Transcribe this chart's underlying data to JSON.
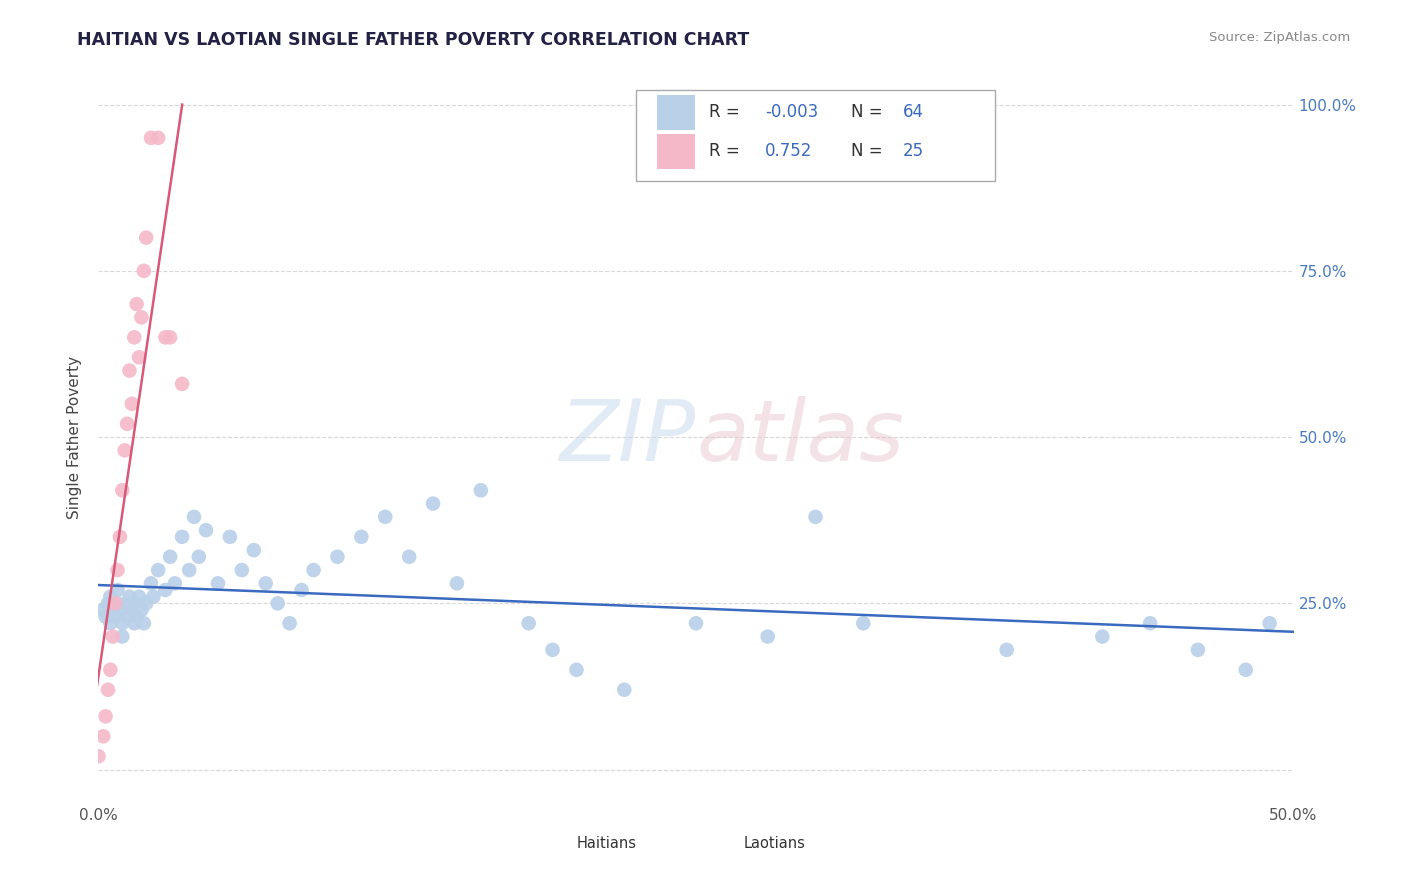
{
  "title": "HAITIAN VS LAOTIAN SINGLE FATHER POVERTY CORRELATION CHART",
  "source": "Source: ZipAtlas.com",
  "ylabel": "Single Father Poverty",
  "xlim": [
    0.0,
    0.5
  ],
  "ylim": [
    -0.05,
    1.05
  ],
  "xticks": [
    0.0,
    0.1,
    0.2,
    0.3,
    0.4,
    0.5
  ],
  "xtick_labels": [
    "0.0%",
    "",
    "",
    "",
    "",
    "50.0%"
  ],
  "yticks": [
    0.0,
    0.25,
    0.5,
    0.75,
    1.0
  ],
  "ytick_labels_right": [
    "",
    "25.0%",
    "50.0%",
    "75.0%",
    "100.0%"
  ],
  "background_color": "#ffffff",
  "grid_color": "#d8d8d8",
  "haitian_color": "#b8d0e8",
  "laotian_color": "#f5b8c8",
  "haitian_line_color": "#3a6abf",
  "laotian_line_color": "#d85878",
  "legend_haitian_r": "-0.003",
  "legend_haitian_n": "64",
  "legend_laotian_r": "0.752",
  "legend_laotian_n": "25",
  "haitian_x": [
    0.002,
    0.003,
    0.004,
    0.005,
    0.005,
    0.006,
    0.007,
    0.008,
    0.008,
    0.009,
    0.01,
    0.01,
    0.012,
    0.012,
    0.013,
    0.014,
    0.015,
    0.015,
    0.016,
    0.017,
    0.018,
    0.019,
    0.02,
    0.022,
    0.023,
    0.025,
    0.028,
    0.03,
    0.032,
    0.035,
    0.038,
    0.04,
    0.042,
    0.045,
    0.05,
    0.055,
    0.06,
    0.065,
    0.07,
    0.075,
    0.08,
    0.085,
    0.09,
    0.1,
    0.11,
    0.12,
    0.13,
    0.14,
    0.15,
    0.16,
    0.18,
    0.19,
    0.2,
    0.22,
    0.25,
    0.28,
    0.3,
    0.32,
    0.38,
    0.42,
    0.44,
    0.46,
    0.48,
    0.49
  ],
  "haitian_y": [
    0.24,
    0.23,
    0.25,
    0.22,
    0.26,
    0.24,
    0.23,
    0.25,
    0.27,
    0.24,
    0.2,
    0.22,
    0.23,
    0.25,
    0.26,
    0.24,
    0.22,
    0.25,
    0.23,
    0.26,
    0.24,
    0.22,
    0.25,
    0.28,
    0.26,
    0.3,
    0.27,
    0.32,
    0.28,
    0.35,
    0.3,
    0.38,
    0.32,
    0.36,
    0.28,
    0.35,
    0.3,
    0.33,
    0.28,
    0.25,
    0.22,
    0.27,
    0.3,
    0.32,
    0.35,
    0.38,
    0.32,
    0.4,
    0.28,
    0.42,
    0.22,
    0.18,
    0.15,
    0.12,
    0.22,
    0.2,
    0.38,
    0.22,
    0.18,
    0.2,
    0.22,
    0.18,
    0.15,
    0.22
  ],
  "laotian_x": [
    0.0,
    0.002,
    0.003,
    0.004,
    0.005,
    0.006,
    0.007,
    0.008,
    0.009,
    0.01,
    0.011,
    0.012,
    0.013,
    0.014,
    0.015,
    0.016,
    0.017,
    0.018,
    0.019,
    0.02,
    0.022,
    0.025,
    0.028,
    0.03,
    0.035
  ],
  "laotian_y": [
    0.02,
    0.05,
    0.08,
    0.12,
    0.15,
    0.2,
    0.25,
    0.3,
    0.35,
    0.42,
    0.48,
    0.52,
    0.6,
    0.55,
    0.65,
    0.7,
    0.62,
    0.68,
    0.75,
    0.8,
    0.95,
    0.95,
    0.65,
    0.65,
    0.58
  ]
}
